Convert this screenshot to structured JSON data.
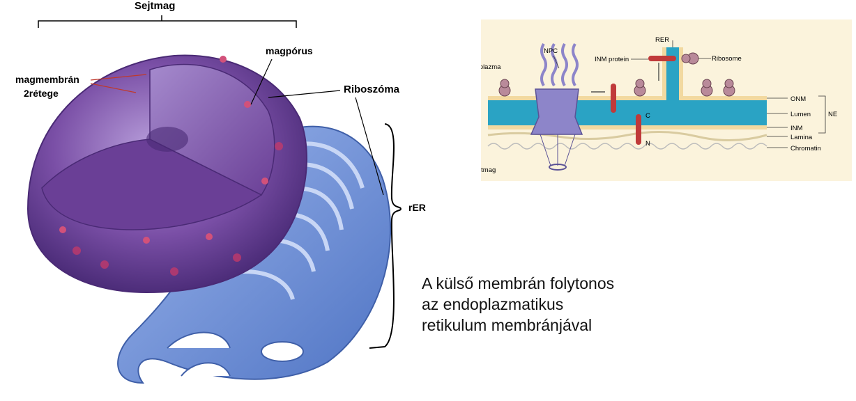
{
  "left_labels": {
    "sejtmag": "Sejtmag",
    "magmembran_1": "magmembrán",
    "magmembran_2": "2rétege",
    "magporus": "magpórus",
    "riboszoma": "Riboszóma",
    "rer": "rER"
  },
  "caption": {
    "line1": "A külső membrán folytonos",
    "line2": "az endoplazmatikus",
    "line3": "retikulum membránjával"
  },
  "right_labels": {
    "citoplazma": "citoplazma",
    "sejtmag": "sejtmag",
    "rer": "RER",
    "npc": "NPC",
    "inm_protein": "INM protein",
    "ribosome": "Ribosome",
    "c": "C",
    "n": "N",
    "onm": "ONM",
    "lumen": "Lumen",
    "inm": "INM",
    "ne": "NE",
    "lamina": "Lamina",
    "chromatin": "Chromatin"
  },
  "colors": {
    "nucleus_purple": "#7a4fa6",
    "er_blue": "#6b8fd6",
    "lumen_teal": "#2aa3c4",
    "membrane_yellow": "#f2d9a0",
    "background_diagram": "#fbf3dc"
  }
}
